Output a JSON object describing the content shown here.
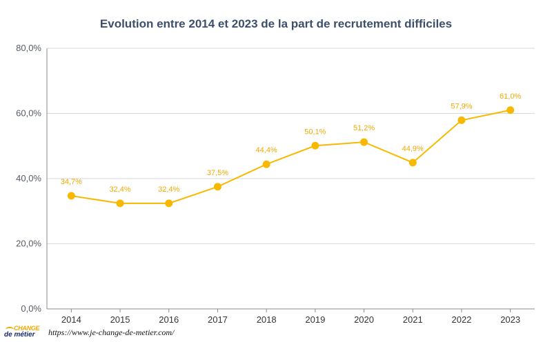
{
  "chart_data": {
    "type": "line",
    "title": "Evolution entre 2014 et 2023 de la part de recrutement difficiles",
    "xlabel": "",
    "ylabel": "",
    "categories": [
      "2014",
      "2015",
      "2016",
      "2017",
      "2018",
      "2019",
      "2020",
      "2021",
      "2022",
      "2023"
    ],
    "series": [
      {
        "name": "Part de recrutement difficiles",
        "values": [
          34.7,
          32.4,
          32.4,
          37.5,
          44.4,
          50.1,
          51.2,
          44.9,
          57.9,
          61.0
        ],
        "labels": [
          "34,7%",
          "32,4%",
          "32,4%",
          "37,5%",
          "44,4%",
          "50,1%",
          "51,2%",
          "44,9%",
          "57,9%",
          "61,0%"
        ]
      }
    ],
    "ylim": [
      0,
      80
    ],
    "yticks": [
      0,
      20,
      40,
      60,
      80
    ],
    "ytick_labels": [
      "0,0%",
      "20,0%",
      "40,0%",
      "60,0%",
      "80,0%"
    ],
    "grid": true,
    "legend": "none"
  },
  "colors": {
    "title": "#3d4f6b",
    "line": "#f9b800",
    "label": "#f2a900",
    "grid": "#d9d9d9",
    "axis": "#888888"
  },
  "footer": {
    "logo_top": "CHANGE",
    "logo_bottom": "de métier",
    "url": "https://www.je-change-de-metier.com/"
  }
}
